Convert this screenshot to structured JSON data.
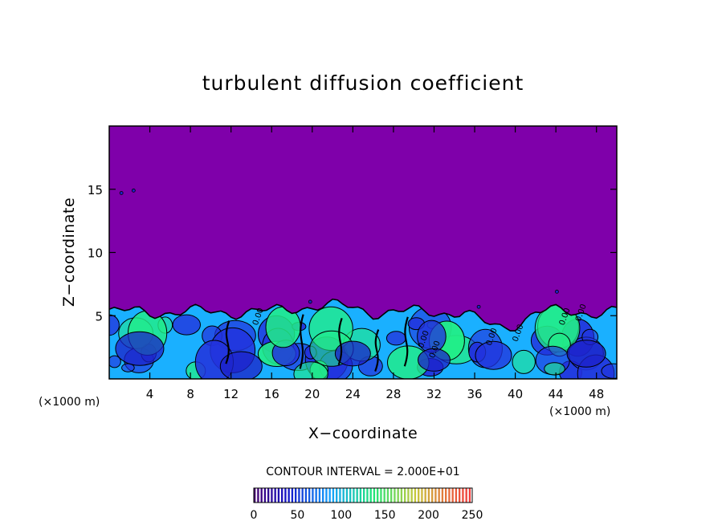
{
  "chart_data": {
    "type": "heatmap",
    "title": "turbulent diffusion coefficient",
    "xlabel": "X−coordinate",
    "ylabel": "Z−coordinate",
    "x_unit_left": "(×1000 m)",
    "x_unit_right": "(×1000 m)",
    "xlim": [
      0,
      50
    ],
    "ylim": [
      0,
      20
    ],
    "x_ticks": [
      "4",
      "8",
      "12",
      "16",
      "20",
      "24",
      "28",
      "32",
      "36",
      "40",
      "44",
      "48"
    ],
    "y_ticks": [
      "5",
      "10",
      "15"
    ],
    "contour_interval_text": "CONTOUR INTERVAL = 2.000E+01",
    "contour_labels": [
      "0.00",
      "0.00",
      "0.00",
      "0.00",
      "0.00",
      "0.00",
      "0.00"
    ],
    "colorbar": {
      "min": 0,
      "max": 250,
      "ticks": [
        "0",
        "50",
        "100",
        "150",
        "200",
        "250"
      ]
    },
    "background_value": 0,
    "turbulent_layer_top_km": 5.3,
    "colors": {
      "background": "#7f00aa",
      "low": "#2233dd",
      "mid": "#1ab0ff",
      "high": "#22ee88",
      "contour": "#000000"
    }
  }
}
